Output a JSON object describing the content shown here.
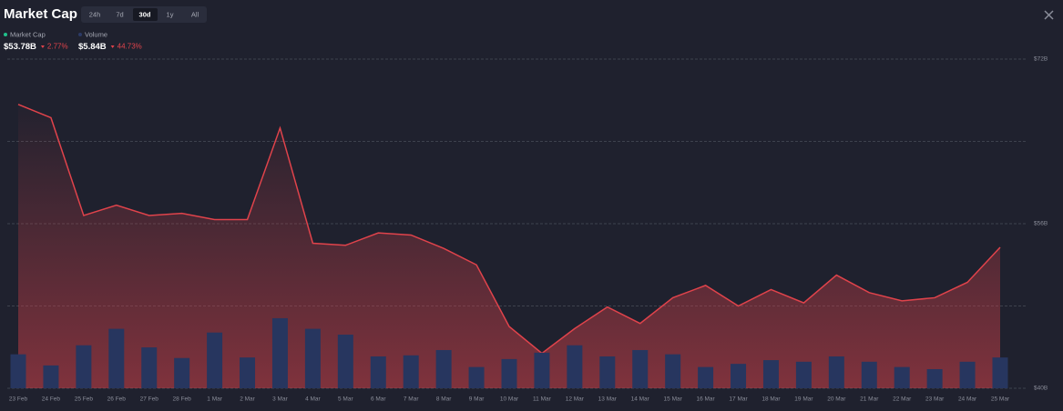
{
  "chart_data": {
    "type": "line",
    "title": "Market Cap",
    "timeframes": [
      "24h",
      "7d",
      "30d",
      "1y",
      "All"
    ],
    "active_timeframe": 2,
    "summary": [
      {
        "name": "Market Cap",
        "color": "#21c08b",
        "value_label": "$53.78B",
        "change": "2.77%"
      },
      {
        "name": "Volume",
        "color": "#2c3a66",
        "value_label": "$5.84B",
        "change": "44.73%"
      }
    ],
    "categories": [
      "23 Feb",
      "24 Feb",
      "25 Feb",
      "26 Feb",
      "27 Feb",
      "28 Feb",
      "1 Mar",
      "2 Mar",
      "3 Mar",
      "4 Mar",
      "5 Mar",
      "6 Mar",
      "7 Mar",
      "8 Mar",
      "9 Mar",
      "10 Mar",
      "11 Mar",
      "12 Mar",
      "13 Mar",
      "14 Mar",
      "15 Mar",
      "16 Mar",
      "17 Mar",
      "18 Mar",
      "19 Mar",
      "20 Mar",
      "21 Mar",
      "22 Mar",
      "23 Mar",
      "24 Mar",
      "25 Mar"
    ],
    "series": [
      {
        "name": "Market Cap",
        "type": "line",
        "color": "#e0434b",
        "values": [
          67.6,
          66.3,
          56.8,
          57.8,
          56.8,
          57.0,
          56.4,
          56.4,
          65.3,
          54.1,
          53.9,
          55.1,
          54.9,
          53.6,
          52.0,
          46.0,
          43.4,
          45.8,
          47.9,
          46.3,
          48.8,
          50.0,
          48.0,
          49.6,
          48.3,
          51.0,
          49.3,
          48.5,
          48.8,
          50.3,
          53.7
        ]
      },
      {
        "name": "Volume",
        "type": "bar",
        "axis": "y2",
        "color": "#27365f",
        "values": [
          6.4,
          4.3,
          8.1,
          11.2,
          7.7,
          5.7,
          10.5,
          5.8,
          13.2,
          11.2,
          10.1,
          6.0,
          6.2,
          7.2,
          4.0,
          5.5,
          6.7,
          8.1,
          6.0,
          7.2,
          6.4,
          4.0,
          4.6,
          5.3,
          5.0,
          6.0,
          5.0,
          4.0,
          3.6,
          5.0,
          5.8
        ]
      }
    ],
    "ylim": [
      40,
      72
    ],
    "yticks": [
      {
        "value": 72,
        "label": "$72B"
      },
      {
        "value": 64,
        "label": null
      },
      {
        "value": 56,
        "label": "$56B"
      },
      {
        "value": 48,
        "label": null
      },
      {
        "value": 40,
        "label": "$40B"
      }
    ],
    "y2lim": [
      0,
      62
    ],
    "grid": true
  }
}
